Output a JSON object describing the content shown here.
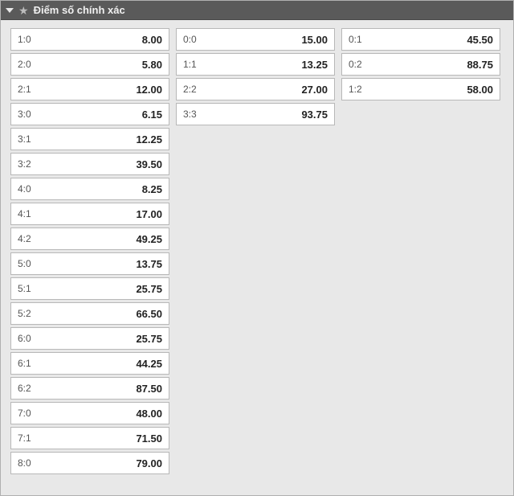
{
  "header": {
    "title": "Điểm số chính xác"
  },
  "columns": [
    {
      "name": "home",
      "cells": [
        {
          "score": "1:0",
          "odds": "8.00"
        },
        {
          "score": "2:0",
          "odds": "5.80"
        },
        {
          "score": "2:1",
          "odds": "12.00"
        },
        {
          "score": "3:0",
          "odds": "6.15"
        },
        {
          "score": "3:1",
          "odds": "12.25"
        },
        {
          "score": "3:2",
          "odds": "39.50"
        },
        {
          "score": "4:0",
          "odds": "8.25"
        },
        {
          "score": "4:1",
          "odds": "17.00"
        },
        {
          "score": "4:2",
          "odds": "49.25"
        },
        {
          "score": "5:0",
          "odds": "13.75"
        },
        {
          "score": "5:1",
          "odds": "25.75"
        },
        {
          "score": "5:2",
          "odds": "66.50"
        },
        {
          "score": "6:0",
          "odds": "25.75"
        },
        {
          "score": "6:1",
          "odds": "44.25"
        },
        {
          "score": "6:2",
          "odds": "87.50"
        },
        {
          "score": "7:0",
          "odds": "48.00"
        },
        {
          "score": "7:1",
          "odds": "71.50"
        },
        {
          "score": "8:0",
          "odds": "79.00"
        }
      ]
    },
    {
      "name": "draw",
      "cells": [
        {
          "score": "0:0",
          "odds": "15.00"
        },
        {
          "score": "1:1",
          "odds": "13.25"
        },
        {
          "score": "2:2",
          "odds": "27.00"
        },
        {
          "score": "3:3",
          "odds": "93.75"
        }
      ]
    },
    {
      "name": "away",
      "cells": [
        {
          "score": "0:1",
          "odds": "45.50"
        },
        {
          "score": "0:2",
          "odds": "88.75"
        },
        {
          "score": "1:2",
          "odds": "58.00"
        }
      ]
    }
  ]
}
